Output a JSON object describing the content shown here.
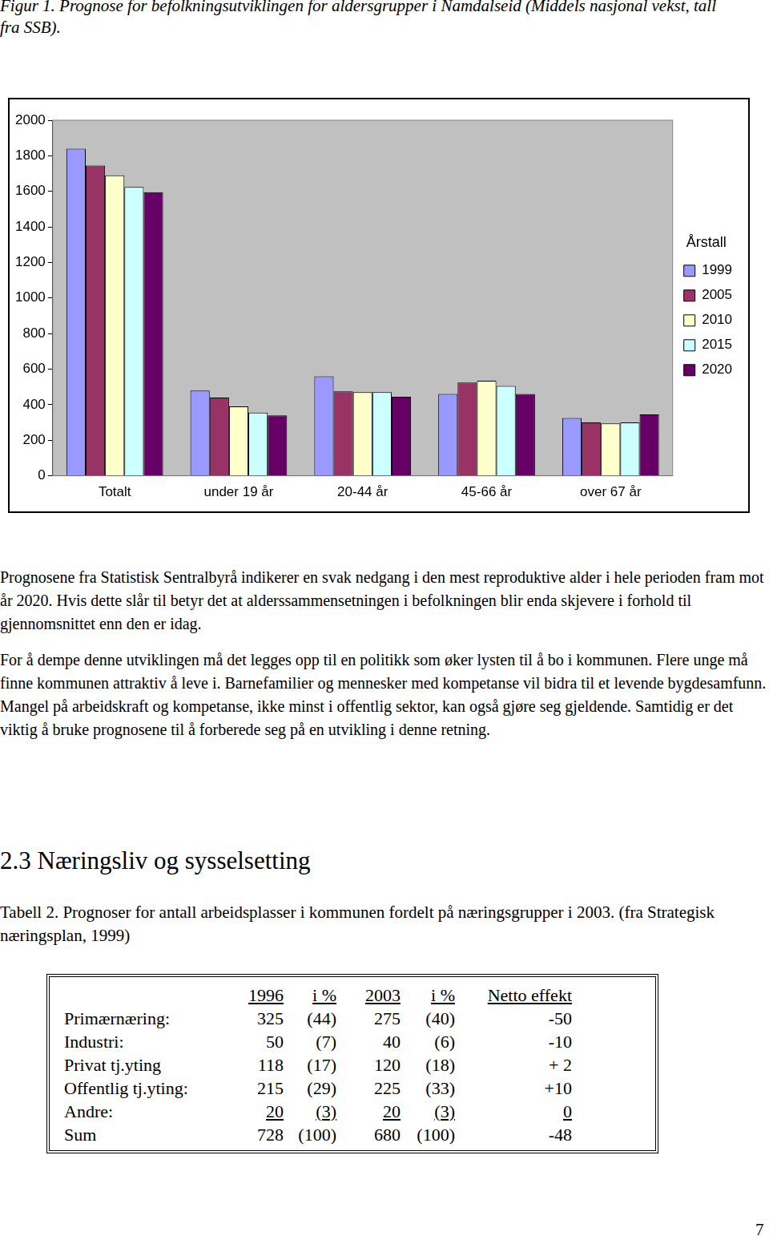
{
  "caption": "Figur 1. Prognose for befolkningsutviklingen for aldersgrupper i Namdalseid (Middels nasjonal vekst, tall fra SSB).",
  "chart_data": {
    "type": "bar",
    "categories": [
      "Totalt",
      "under 19 år",
      "20-44 år",
      "45-66 år",
      "over 67 år"
    ],
    "legend_title": "Årstall",
    "legend": "right",
    "series": [
      {
        "name": "1999",
        "color": "#9999ff",
        "values": [
          1840,
          480,
          560,
          460,
          325
        ]
      },
      {
        "name": "2005",
        "color": "#993366",
        "values": [
          1745,
          440,
          475,
          525,
          300
        ]
      },
      {
        "name": "2010",
        "color": "#ffffcc",
        "values": [
          1690,
          390,
          470,
          535,
          295
        ]
      },
      {
        "name": "2015",
        "color": "#ccffff",
        "values": [
          1625,
          355,
          470,
          505,
          300
        ]
      },
      {
        "name": "2020",
        "color": "#660066",
        "values": [
          1595,
          340,
          445,
          460,
          345
        ]
      }
    ],
    "ylim": [
      0,
      2000
    ],
    "yticks": [
      0,
      200,
      400,
      600,
      800,
      1000,
      1200,
      1400,
      1600,
      1800,
      2000
    ],
    "grid": false
  },
  "paragraphs": [
    "Prognosene fra Statistisk Sentralbyrå indikerer en svak nedgang i den mest reproduktive alder i hele perioden fram mot år 2020. Hvis dette slår til betyr det at alderssammensetningen i befolkningen blir enda skjevere i forhold til gjennomsnittet enn den er idag.",
    "For å dempe denne utviklingen må det legges opp til en politikk som øker lysten til å bo i kommunen. Flere unge må finne kommunen attraktiv å leve i. Barnefamilier og mennesker med kompetanse vil bidra til et levende bygdesamfunn. Mangel på arbeidskraft og kompetanse, ikke minst i offentlig sektor, kan også gjøre seg gjeldende. Samtidig er det viktig å bruke prognosene til å forberede seg på en utvikling i denne retning."
  ],
  "heading": "2.3 Næringsliv og sysselsetting",
  "table_caption": "Tabell 2.  Prognoser for antall arbeidsplasser i kommunen fordelt på næringsgrupper i 2003. (fra Strategisk næringsplan, 1999)",
  "table": {
    "header": [
      "1996",
      "i %",
      "2003",
      "i %",
      "Netto effekt"
    ],
    "rows": [
      {
        "label": "Primærnæring:",
        "cells": [
          "325",
          "(44)",
          "275",
          "(40)",
          "-50"
        ]
      },
      {
        "label": "Industri:",
        "cells": [
          "50",
          "(7)",
          "40",
          "(6)",
          "-10"
        ]
      },
      {
        "label": "Privat tj.yting",
        "cells": [
          "118",
          "(17)",
          "120",
          "(18)",
          "+ 2"
        ]
      },
      {
        "label": "Offentlig tj.yting:",
        "cells": [
          "215",
          "(29)",
          "225",
          "(33)",
          "+10"
        ]
      },
      {
        "label": "Andre:",
        "cells": [
          "20",
          "(3)",
          "20",
          "(3)",
          "0"
        ]
      },
      {
        "label": "Sum",
        "cells": [
          "728",
          "(100)",
          "680",
          "(100)",
          "-48"
        ]
      }
    ]
  },
  "page_number": "7"
}
